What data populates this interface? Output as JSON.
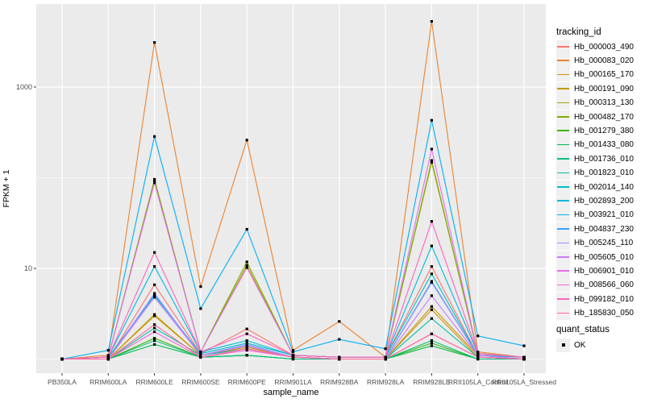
{
  "figure": {
    "background": "#FFFFFF",
    "panel_background": "#EBEBEB",
    "gridline_color": "#FFFFFF",
    "tick_color": "#333333",
    "axis_text_color": "#4D4D4D",
    "legend_key_background": "#F0F0F0"
  },
  "chart_data": {
    "type": "line",
    "title": "",
    "xlabel": "sample_name",
    "ylabel": "FPKM + 1",
    "y_scale": "log10",
    "grid": "on",
    "legend_position": "right",
    "y_major_ticks": [
      {
        "value": 10,
        "label": "10"
      },
      {
        "value": 1000,
        "label": "1000"
      }
    ],
    "y_minor_gridlines": [
      1,
      100
    ],
    "ylim": [
      0.74,
      7400
    ],
    "point_shape": "filled-square",
    "point_color": "#000000",
    "categories": [
      "PB350LA",
      "RRIM600LA",
      "RRIM600LE",
      "RRIM600SE",
      "RRIM600PE",
      "RRIM901LA",
      "RRIM928BA",
      "RRIM928LA",
      "RRIM928LE",
      "RRII105LA_Control",
      "RRII105LA_Stressed"
    ],
    "series": [
      {
        "name": "Hb_000003_490",
        "color": "#F8766D",
        "values": [
          1,
          1,
          6.6,
          1.15,
          2.15,
          1.1,
          1.05,
          1.05,
          10.5,
          1.1,
          1.05
        ]
      },
      {
        "name": "Hb_000083_020",
        "color": "#EA8331",
        "values": [
          1,
          1.1,
          3100,
          6.3,
          260,
          1.25,
          2.6,
          1.05,
          5300,
          1.2,
          1.05
        ]
      },
      {
        "name": "Hb_000165_170",
        "color": "#D89000",
        "values": [
          1,
          1,
          3.0,
          1.1,
          1.35,
          1.05,
          1,
          1,
          3.5,
          1.05,
          1
        ]
      },
      {
        "name": "Hb_000191_090",
        "color": "#C09B00",
        "values": [
          1,
          1,
          3.1,
          1.1,
          1.4,
          1.05,
          1,
          1,
          3.8,
          1.1,
          1
        ]
      },
      {
        "name": "Hb_000313_130",
        "color": "#A3A500",
        "values": [
          1,
          1.05,
          92,
          1.2,
          10.8,
          1.1,
          1.05,
          1.05,
          148,
          1.15,
          1.05
        ]
      },
      {
        "name": "Hb_000482_170",
        "color": "#7CAE00",
        "values": [
          1,
          1.05,
          96,
          1.2,
          11.8,
          1.1,
          1.05,
          1.05,
          155,
          1.15,
          1.05
        ]
      },
      {
        "name": "Hb_001279_380",
        "color": "#39B600",
        "values": [
          1,
          1,
          1.7,
          1.05,
          1.1,
          1,
          1,
          1,
          1.5,
          1,
          1
        ]
      },
      {
        "name": "Hb_001433_080",
        "color": "#00BB4E",
        "values": [
          1,
          1,
          1.45,
          1.05,
          1.1,
          1,
          1,
          1,
          1.4,
          1,
          1
        ]
      },
      {
        "name": "Hb_001736_010",
        "color": "#00BF7D",
        "values": [
          1,
          1,
          1.6,
          1.05,
          1.1,
          1,
          1,
          1,
          1.6,
          1,
          1
        ]
      },
      {
        "name": "Hb_001823_010",
        "color": "#00C1A3",
        "values": [
          1,
          1,
          2.2,
          1.1,
          1.3,
          1.05,
          1,
          1,
          2.8,
          1.05,
          1
        ]
      },
      {
        "name": "Hb_002014_140",
        "color": "#00BFC4",
        "values": [
          1,
          1.05,
          5.0,
          1.15,
          1.5,
          1.1,
          1.05,
          1.05,
          8.7,
          1.1,
          1.05
        ]
      },
      {
        "name": "Hb_002893_200",
        "color": "#00BAE0",
        "values": [
          1,
          1.05,
          10.5,
          1.2,
          1.6,
          1.1,
          1.05,
          1.05,
          17.7,
          1.15,
          1.05
        ]
      },
      {
        "name": "Hb_003921_010",
        "color": "#00B0F6",
        "values": [
          1,
          1.25,
          285,
          3.6,
          27,
          1.2,
          1.65,
          1.3,
          430,
          1.8,
          1.4
        ]
      },
      {
        "name": "Hb_004837_230",
        "color": "#35A2FF",
        "values": [
          1,
          1,
          5.2,
          1.1,
          1.4,
          1.05,
          1,
          1,
          7.2,
          1.1,
          1
        ]
      },
      {
        "name": "Hb_005245_110",
        "color": "#9590FF",
        "values": [
          1,
          1,
          5.3,
          1.1,
          1.45,
          1.05,
          1,
          1,
          7.0,
          1.1,
          1
        ]
      },
      {
        "name": "Hb_005605_010",
        "color": "#C77CFF",
        "values": [
          1,
          1,
          4.8,
          1.1,
          1.4,
          1.05,
          1,
          1,
          5.0,
          1.1,
          1
        ]
      },
      {
        "name": "Hb_006901_010",
        "color": "#E76BF3",
        "values": [
          1,
          1.05,
          88,
          1.2,
          10.2,
          1.1,
          1.05,
          1.05,
          207,
          1.15,
          1.05
        ]
      },
      {
        "name": "Hb_008566_060",
        "color": "#FA62DB",
        "values": [
          1,
          1,
          2.0,
          1.05,
          1.25,
          1.05,
          1,
          1,
          1.9,
          1.05,
          1
        ]
      },
      {
        "name": "Hb_099182_010",
        "color": "#FF62BC",
        "values": [
          1,
          1.05,
          15,
          1.2,
          1.9,
          1.1,
          1.05,
          1.05,
          33,
          1.15,
          1.05
        ]
      },
      {
        "name": "Hb_185830_050",
        "color": "#FF6A98",
        "values": [
          1,
          1,
          2.4,
          1.05,
          1.3,
          1.05,
          1,
          1,
          1.9,
          1.05,
          1
        ]
      }
    ]
  },
  "legend": {
    "tracking_title": "tracking_id",
    "quant_title": "quant_status",
    "quant_items": [
      {
        "label": "OK",
        "marker": "black-square"
      }
    ]
  }
}
